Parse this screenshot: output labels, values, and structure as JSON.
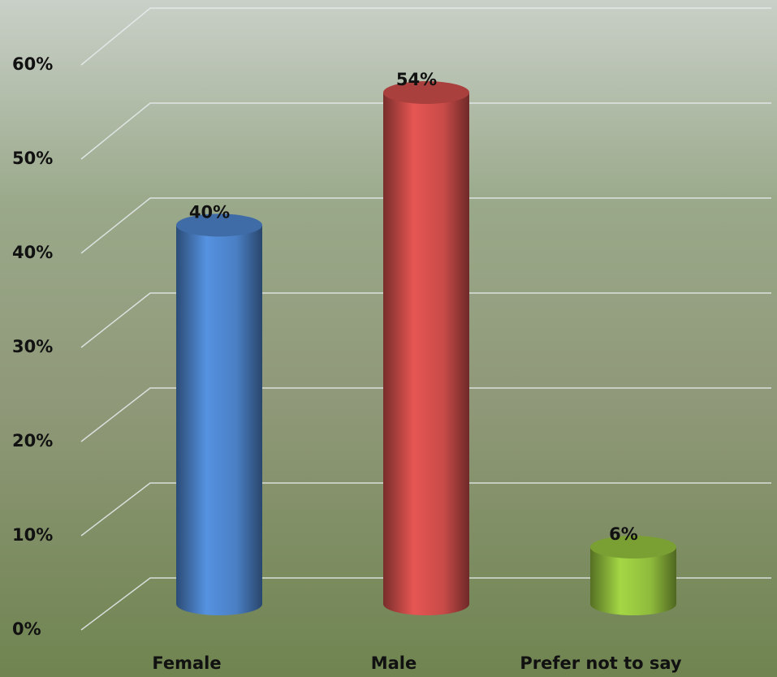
{
  "chart_data": {
    "type": "bar3d",
    "categories": [
      "Female",
      "Male",
      "Prefer not to say"
    ],
    "values": [
      40,
      54,
      6
    ],
    "value_labels": [
      "40%",
      "54%",
      "6%"
    ],
    "colors": [
      "#4a7fc4",
      "#c84b48",
      "#8fbb3c"
    ],
    "ylim": [
      0,
      60
    ],
    "yticks": [
      {
        "value": 0,
        "label": "0%"
      },
      {
        "value": 10,
        "label": "10%"
      },
      {
        "value": 20,
        "label": "20%"
      },
      {
        "value": 30,
        "label": "30%"
      },
      {
        "value": 40,
        "label": "40%"
      },
      {
        "value": 50,
        "label": "50%"
      },
      {
        "value": 60,
        "label": "60%"
      }
    ],
    "grid": true
  }
}
